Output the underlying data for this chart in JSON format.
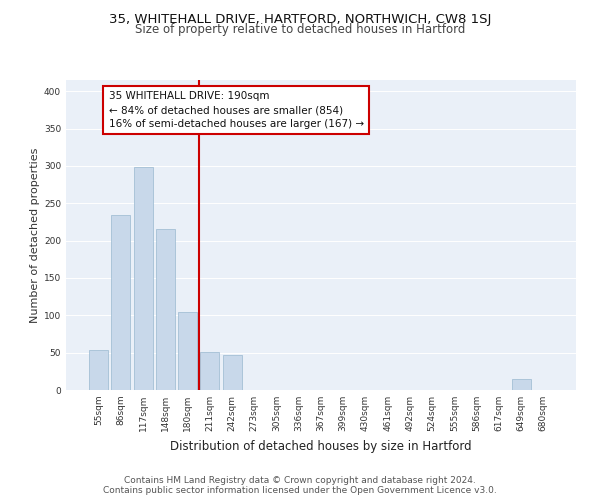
{
  "title1": "35, WHITEHALL DRIVE, HARTFORD, NORTHWICH, CW8 1SJ",
  "title2": "Size of property relative to detached houses in Hartford",
  "xlabel": "Distribution of detached houses by size in Hartford",
  "ylabel": "Number of detached properties",
  "categories": [
    "55sqm",
    "86sqm",
    "117sqm",
    "148sqm",
    "180sqm",
    "211sqm",
    "242sqm",
    "273sqm",
    "305sqm",
    "336sqm",
    "367sqm",
    "399sqm",
    "430sqm",
    "461sqm",
    "492sqm",
    "524sqm",
    "555sqm",
    "586sqm",
    "617sqm",
    "649sqm",
    "680sqm"
  ],
  "values": [
    53,
    234,
    299,
    215,
    104,
    51,
    47,
    0,
    0,
    0,
    0,
    0,
    0,
    0,
    0,
    0,
    0,
    0,
    0,
    15,
    0
  ],
  "bar_color": "#c8d8ea",
  "bar_edge_color": "#9ab8d0",
  "vline_color": "#cc0000",
  "annotation_line1": "35 WHITEHALL DRIVE: 190sqm",
  "annotation_line2": "← 84% of detached houses are smaller (854)",
  "annotation_line3": "16% of semi-detached houses are larger (167) →",
  "annotation_box_color": "#ffffff",
  "annotation_box_edge": "#cc0000",
  "ylim": [
    0,
    415
  ],
  "yticks": [
    0,
    50,
    100,
    150,
    200,
    250,
    300,
    350,
    400
  ],
  "bg_color": "#eaf0f8",
  "footer1": "Contains HM Land Registry data © Crown copyright and database right 2024.",
  "footer2": "Contains public sector information licensed under the Open Government Licence v3.0.",
  "title1_fontsize": 9.5,
  "title2_fontsize": 8.5,
  "xlabel_fontsize": 8.5,
  "ylabel_fontsize": 8,
  "tick_fontsize": 6.5,
  "annotation_fontsize": 7.5,
  "footer_fontsize": 6.5
}
